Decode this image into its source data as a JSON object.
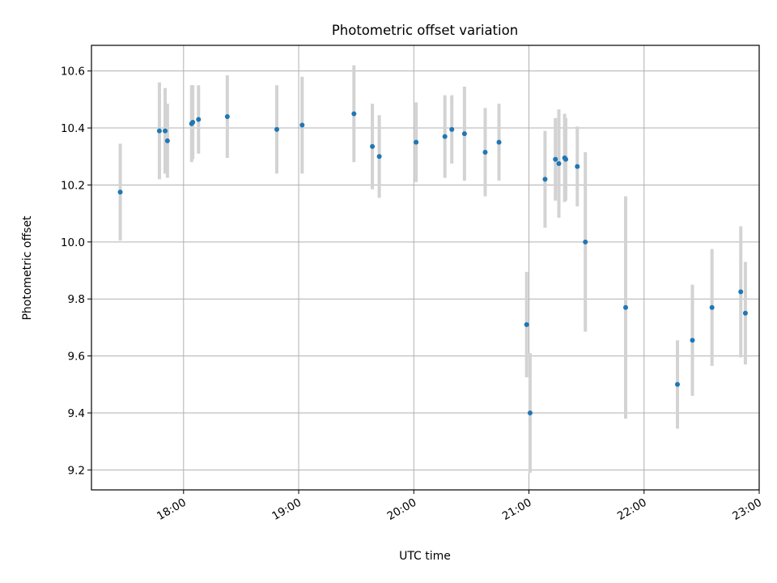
{
  "chart_data": {
    "type": "scatter",
    "title": "Photometric offset variation",
    "xlabel": "UTC time",
    "ylabel": "Photometric offset",
    "x_unit": "hours UTC",
    "xlim": [
      17.2,
      23.0
    ],
    "ylim": [
      9.13,
      10.69
    ],
    "grid": true,
    "x_ticks": [
      {
        "value": 18,
        "label": "18:00"
      },
      {
        "value": 19,
        "label": "19:00"
      },
      {
        "value": 20,
        "label": "20:00"
      },
      {
        "value": 21,
        "label": "21:00"
      },
      {
        "value": 22,
        "label": "22:00"
      },
      {
        "value": 23,
        "label": "23:00"
      }
    ],
    "y_ticks": [
      {
        "value": 9.2,
        "label": "9.2"
      },
      {
        "value": 9.4,
        "label": "9.4"
      },
      {
        "value": 9.6,
        "label": "9.6"
      },
      {
        "value": 9.8,
        "label": "9.8"
      },
      {
        "value": 10.0,
        "label": "10.0"
      },
      {
        "value": 10.2,
        "label": "10.2"
      },
      {
        "value": 10.4,
        "label": "10.4"
      },
      {
        "value": 10.6,
        "label": "10.6"
      }
    ],
    "colors": {
      "marker": "#1f77b4",
      "errorbar": "#d3d3d3",
      "grid": "#b0b0b0"
    },
    "points": [
      {
        "x": 17.45,
        "y": 10.175,
        "err": 0.17
      },
      {
        "x": 17.79,
        "y": 10.39,
        "err": 0.17
      },
      {
        "x": 17.84,
        "y": 10.39,
        "err": 0.15
      },
      {
        "x": 17.86,
        "y": 10.355,
        "err": 0.13
      },
      {
        "x": 18.07,
        "y": 10.415,
        "err": 0.135
      },
      {
        "x": 18.08,
        "y": 10.42,
        "err": 0.13
      },
      {
        "x": 18.13,
        "y": 10.43,
        "err": 0.12
      },
      {
        "x": 18.38,
        "y": 10.44,
        "err": 0.145
      },
      {
        "x": 18.81,
        "y": 10.395,
        "err": 0.155
      },
      {
        "x": 19.03,
        "y": 10.41,
        "err": 0.17
      },
      {
        "x": 19.48,
        "y": 10.45,
        "err": 0.17
      },
      {
        "x": 19.64,
        "y": 10.335,
        "err": 0.15
      },
      {
        "x": 19.7,
        "y": 10.3,
        "err": 0.145
      },
      {
        "x": 20.02,
        "y": 10.35,
        "err": 0.14
      },
      {
        "x": 20.27,
        "y": 10.37,
        "err": 0.145
      },
      {
        "x": 20.33,
        "y": 10.395,
        "err": 0.12
      },
      {
        "x": 20.44,
        "y": 10.38,
        "err": 0.165
      },
      {
        "x": 20.62,
        "y": 10.315,
        "err": 0.155
      },
      {
        "x": 20.74,
        "y": 10.35,
        "err": 0.135
      },
      {
        "x": 20.98,
        "y": 9.71,
        "err": 0.185
      },
      {
        "x": 21.01,
        "y": 9.4,
        "err": 0.21
      },
      {
        "x": 21.14,
        "y": 10.22,
        "err": 0.17
      },
      {
        "x": 21.23,
        "y": 10.29,
        "err": 0.145
      },
      {
        "x": 21.26,
        "y": 10.275,
        "err": 0.19
      },
      {
        "x": 21.31,
        "y": 10.295,
        "err": 0.155
      },
      {
        "x": 21.32,
        "y": 10.29,
        "err": 0.145
      },
      {
        "x": 21.42,
        "y": 10.265,
        "err": 0.14
      },
      {
        "x": 21.49,
        "y": 10.0,
        "err": 0.315
      },
      {
        "x": 21.84,
        "y": 9.77,
        "err": 0.39
      },
      {
        "x": 22.29,
        "y": 9.5,
        "err": 0.155
      },
      {
        "x": 22.42,
        "y": 9.655,
        "err": 0.195
      },
      {
        "x": 22.59,
        "y": 9.77,
        "err": 0.205
      },
      {
        "x": 22.84,
        "y": 9.825,
        "err": 0.23
      },
      {
        "x": 22.88,
        "y": 9.75,
        "err": 0.18
      }
    ]
  }
}
